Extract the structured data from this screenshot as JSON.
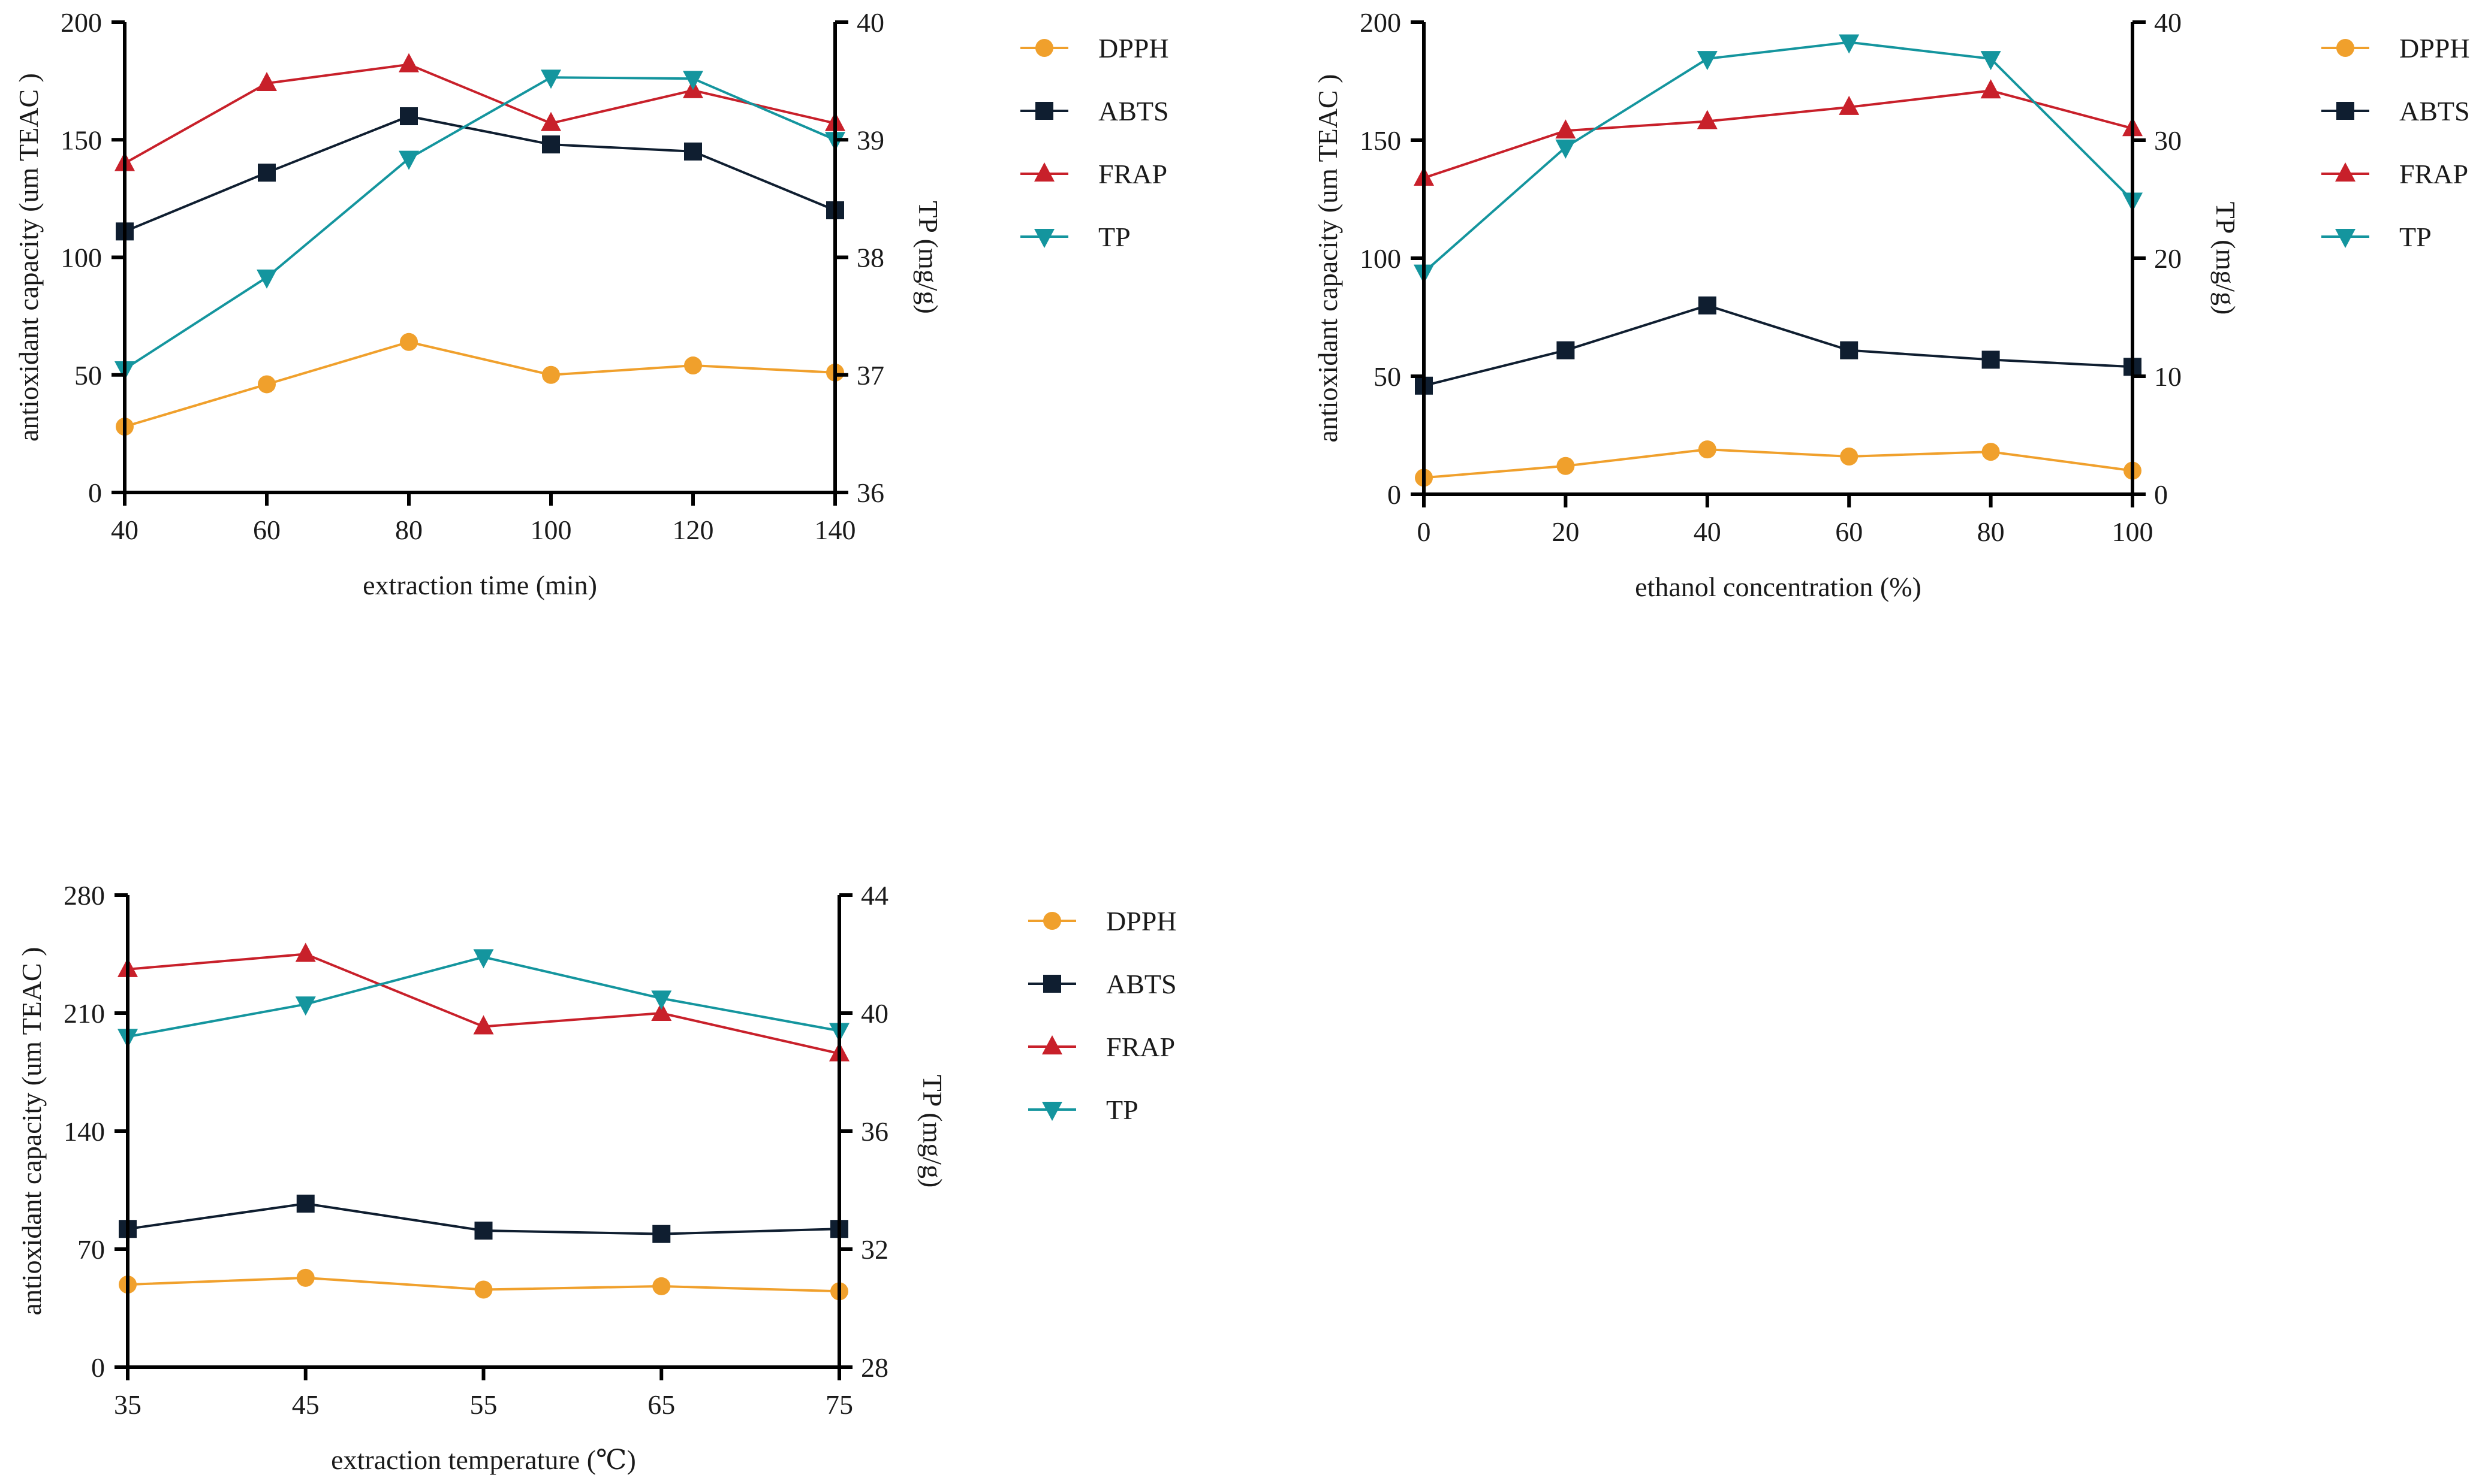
{
  "colors": {
    "DPPH": "#F0A02C",
    "ABTS": "#0F1E30",
    "FRAP": "#C8202A",
    "TP": "#14959E"
  },
  "chart_data": [
    {
      "type": "line",
      "xlabel": "extraction time (min)",
      "ylabel": "antioxidant capacity (um TEAC )",
      "y2label": "TP (mg/g)",
      "x": [
        40,
        60,
        80,
        100,
        120,
        140
      ],
      "xticks": [
        "40",
        "60",
        "80",
        "100",
        "120",
        "140"
      ],
      "xlim": [
        40,
        140
      ],
      "ylim": [
        0,
        200
      ],
      "yticks": [
        "0",
        "50",
        "100",
        "150",
        "200"
      ],
      "y2lim": [
        36,
        40
      ],
      "y2ticks": [
        "36",
        "37",
        "38",
        "39",
        "40"
      ],
      "series": [
        {
          "name": "DPPH",
          "axis": "left",
          "marker": "circle",
          "values": [
            28,
            46,
            64,
            50,
            54,
            51
          ]
        },
        {
          "name": "ABTS",
          "axis": "left",
          "marker": "square",
          "values": [
            111,
            136,
            160,
            148,
            145,
            120
          ]
        },
        {
          "name": "FRAP",
          "axis": "left",
          "marker": "triangle-up",
          "values": [
            140,
            174,
            182,
            157,
            171,
            157
          ]
        },
        {
          "name": "TP",
          "axis": "right",
          "marker": "triangle-down",
          "values": [
            37.05,
            37.83,
            38.84,
            39.53,
            39.52,
            39.0
          ]
        }
      ]
    },
    {
      "type": "line",
      "xlabel": "ethanol concentration (%)",
      "ylabel": "antioxidant capacity (um TEAC )",
      "y2label": "TP (mg/g)",
      "x": [
        0,
        20,
        40,
        60,
        80,
        100
      ],
      "xticks": [
        "0",
        "20",
        "40",
        "60",
        "80",
        "100"
      ],
      "xlim": [
        0,
        100
      ],
      "ylim": [
        0,
        200
      ],
      "yticks": [
        "0",
        "50",
        "100",
        "150",
        "200"
      ],
      "y2lim": [
        0,
        40
      ],
      "y2ticks": [
        "0",
        "10",
        "20",
        "30",
        "40"
      ],
      "series": [
        {
          "name": "DPPH",
          "axis": "left",
          "marker": "circle",
          "values": [
            7,
            12,
            19,
            16,
            18,
            10
          ]
        },
        {
          "name": "ABTS",
          "axis": "left",
          "marker": "square",
          "values": [
            46,
            61,
            80,
            61,
            57,
            54
          ]
        },
        {
          "name": "FRAP",
          "axis": "left",
          "marker": "triangle-up",
          "values": [
            134,
            154,
            158,
            164,
            171,
            155
          ]
        },
        {
          "name": "TP",
          "axis": "right",
          "marker": "triangle-down",
          "values": [
            18.8,
            29.4,
            36.9,
            38.3,
            36.9,
            24.9
          ]
        }
      ]
    },
    {
      "type": "line",
      "xlabel": "extraction temperature (℃)",
      "ylabel": "antioxidant capacity (um TEAC )",
      "y2label": "TP (mg/g)",
      "x": [
        35,
        45,
        55,
        65,
        75
      ],
      "xticks": [
        "35",
        "45",
        "55",
        "65",
        "75"
      ],
      "xlim": [
        35,
        75
      ],
      "ylim": [
        0,
        280
      ],
      "yticks": [
        "0",
        "70",
        "140",
        "210",
        "280"
      ],
      "y2lim": [
        28,
        44
      ],
      "y2ticks": [
        "28",
        "32",
        "36",
        "40",
        "44"
      ],
      "series": [
        {
          "name": "DPPH",
          "axis": "left",
          "marker": "circle",
          "values": [
            49,
            53,
            46,
            48,
            45
          ]
        },
        {
          "name": "ABTS",
          "axis": "left",
          "marker": "square",
          "values": [
            82,
            97,
            81,
            79,
            82
          ]
        },
        {
          "name": "FRAP",
          "axis": "left",
          "marker": "triangle-up",
          "values": [
            236,
            245,
            202,
            210,
            186
          ]
        },
        {
          "name": "TP",
          "axis": "right",
          "marker": "triangle-down",
          "values": [
            39.2,
            40.3,
            41.9,
            40.5,
            39.4
          ]
        }
      ]
    }
  ]
}
